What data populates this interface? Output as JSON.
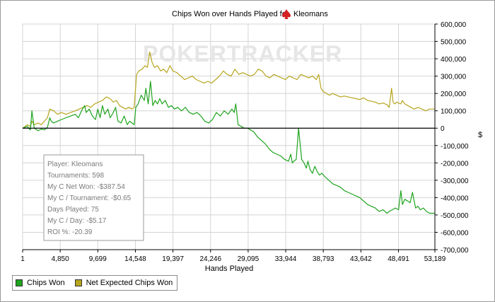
{
  "chart_data": {
    "type": "line",
    "title": "Chips Won over Hands Played for",
    "player_name": "Kleomans",
    "xlabel": "Hands Played",
    "ylabel": "$",
    "xlim": [
      1,
      53189
    ],
    "ylim": [
      -700000,
      600000
    ],
    "x_ticks": [
      1,
      4850,
      9699,
      14548,
      19397,
      24246,
      29095,
      33944,
      38793,
      43642,
      48491,
      53189
    ],
    "x_tick_labels": [
      "1",
      "4,850",
      "9,699",
      "14,548",
      "19,397",
      "24,246",
      "29,095",
      "33,944",
      "38,793",
      "43,642",
      "48,491",
      "53,189"
    ],
    "y_ticks": [
      600000,
      500000,
      400000,
      300000,
      200000,
      100000,
      0,
      -100000,
      -200000,
      -300000,
      -400000,
      -500000,
      -600000,
      -700000
    ],
    "y_tick_labels": [
      "600,000",
      "500,000",
      "400,000",
      "300,000",
      "200,000",
      "100,000",
      "0",
      "-100,000",
      "-200,000",
      "-300,000",
      "-400,000",
      "-500,000",
      "-600,000",
      "-700,000"
    ],
    "grid": true,
    "legend_position": "bottom-left",
    "watermark": "POKERTRACKER",
    "series": [
      {
        "name": "Chips Won",
        "color": "#1ea41e",
        "x": [
          1,
          600,
          1000,
          1200,
          1500,
          2000,
          2400,
          2800,
          3200,
          3500,
          3700,
          4000,
          4500,
          5000,
          5600,
          6200,
          6800,
          7200,
          7600,
          8000,
          8200,
          8600,
          9000,
          9400,
          9700,
          10000,
          10300,
          10600,
          11000,
          11300,
          11700,
          12000,
          12300,
          12700,
          13100,
          13500,
          13800,
          14100,
          14400,
          14600,
          14900,
          15300,
          15700,
          15900,
          16200,
          16500,
          16800,
          17100,
          17400,
          17700,
          18000,
          18400,
          18800,
          19200,
          19600,
          20000,
          20500,
          21000,
          21500,
          22000,
          22500,
          23000,
          23500,
          24000,
          24500,
          25000,
          25500,
          26000,
          26500,
          27000,
          27300,
          27500,
          27800,
          28200,
          28600,
          29000,
          29400,
          29800,
          30300,
          30800,
          31300,
          31800,
          32300,
          32800,
          33300,
          33800,
          34300,
          34600,
          34800,
          35000,
          35300,
          35600,
          36000,
          36300,
          36600,
          36800,
          37100,
          37400,
          37700,
          38000,
          38300,
          38600,
          39000,
          39500,
          40000,
          40500,
          41000,
          41500,
          42000,
          42500,
          43000,
          43500,
          44000,
          44500,
          45000,
          45500,
          46000,
          46500,
          47000,
          47300,
          47700,
          48100,
          48500,
          48800,
          49000,
          49300,
          49700,
          50000,
          50300,
          50700,
          51000,
          51300,
          51700,
          52100,
          52500,
          53189
        ],
        "values": [
          0,
          10000,
          -10000,
          100000,
          0,
          -15000,
          -5000,
          -10000,
          5000,
          60000,
          40000,
          30000,
          40000,
          50000,
          60000,
          70000,
          80000,
          60000,
          100000,
          130000,
          90000,
          110000,
          70000,
          50000,
          110000,
          60000,
          130000,
          80000,
          110000,
          60000,
          90000,
          120000,
          40000,
          30000,
          70000,
          20000,
          40000,
          30000,
          20000,
          120000,
          140000,
          190000,
          160000,
          230000,
          140000,
          270000,
          130000,
          160000,
          140000,
          170000,
          140000,
          160000,
          120000,
          130000,
          110000,
          120000,
          100000,
          120000,
          90000,
          80000,
          90000,
          70000,
          40000,
          30000,
          50000,
          90000,
          70000,
          100000,
          80000,
          110000,
          90000,
          140000,
          20000,
          10000,
          0,
          0,
          -10000,
          -20000,
          -50000,
          -70000,
          -90000,
          -120000,
          -140000,
          -150000,
          -160000,
          -180000,
          -190000,
          -150000,
          -200000,
          -190000,
          -180000,
          0,
          -180000,
          -200000,
          -230000,
          -190000,
          -240000,
          -260000,
          -220000,
          -250000,
          -270000,
          -260000,
          -280000,
          -300000,
          -320000,
          -330000,
          -340000,
          -360000,
          -370000,
          -380000,
          -390000,
          -400000,
          -420000,
          -440000,
          -450000,
          -460000,
          -480000,
          -470000,
          -490000,
          -480000,
          -470000,
          -460000,
          -470000,
          -360000,
          -440000,
          -410000,
          -420000,
          -430000,
          -370000,
          -460000,
          -450000,
          -470000,
          -460000,
          -480000,
          -490000,
          -490000
        ]
      },
      {
        "name": "Net Expected Chips Won",
        "color": "#b7a51e",
        "x": [
          1,
          600,
          1000,
          1200,
          1500,
          2000,
          2400,
          2800,
          3200,
          3500,
          4000,
          4500,
          5000,
          5600,
          6200,
          6800,
          7300,
          7800,
          8300,
          8800,
          9300,
          9800,
          10300,
          10800,
          11300,
          11700,
          12100,
          12500,
          12900,
          13300,
          13700,
          14100,
          14400,
          14700,
          15000,
          15400,
          15800,
          16100,
          16400,
          16700,
          17000,
          17400,
          17800,
          18200,
          18600,
          19000,
          19400,
          19900,
          20400,
          20900,
          21400,
          21900,
          22400,
          22900,
          23400,
          23900,
          24400,
          24900,
          25400,
          25900,
          26400,
          26900,
          27400,
          27900,
          28400,
          28900,
          29400,
          29900,
          30400,
          30900,
          31400,
          31900,
          32400,
          32900,
          33400,
          33900,
          34400,
          34900,
          35400,
          35900,
          36400,
          36900,
          37400,
          37900,
          38200,
          38500,
          38800,
          39200,
          39600,
          40000,
          40500,
          41000,
          41500,
          42000,
          42500,
          43000,
          43500,
          44000,
          44500,
          45000,
          45500,
          46000,
          46500,
          47000,
          47300,
          47600,
          47800,
          48000,
          48300,
          48500,
          48800,
          49000,
          49300,
          49700,
          50100,
          50500,
          51000,
          51500,
          52000,
          52500,
          53189
        ],
        "values": [
          0,
          20000,
          10000,
          40000,
          20000,
          30000,
          20000,
          40000,
          60000,
          110000,
          100000,
          80000,
          90000,
          80000,
          90000,
          100000,
          110000,
          120000,
          130000,
          120000,
          140000,
          150000,
          160000,
          180000,
          170000,
          150000,
          160000,
          130000,
          120000,
          110000,
          120000,
          110000,
          120000,
          310000,
          330000,
          340000,
          360000,
          350000,
          440000,
          380000,
          350000,
          360000,
          330000,
          340000,
          320000,
          360000,
          330000,
          320000,
          300000,
          280000,
          290000,
          300000,
          280000,
          270000,
          260000,
          270000,
          260000,
          280000,
          300000,
          330000,
          310000,
          300000,
          340000,
          310000,
          320000,
          310000,
          300000,
          310000,
          340000,
          330000,
          300000,
          290000,
          310000,
          300000,
          290000,
          280000,
          300000,
          290000,
          280000,
          310000,
          300000,
          290000,
          300000,
          280000,
          310000,
          230000,
          210000,
          200000,
          190000,
          200000,
          190000,
          180000,
          185000,
          180000,
          175000,
          170000,
          165000,
          175000,
          160000,
          155000,
          150000,
          140000,
          145000,
          135000,
          120000,
          230000,
          150000,
          140000,
          150000,
          145000,
          140000,
          160000,
          140000,
          130000,
          120000,
          110000,
          120000,
          110000,
          100000,
          110000,
          110000
        ]
      }
    ],
    "annotations": [
      "Player: Kleomans",
      "Tournaments: 598",
      "My C Net Won: -$387.54",
      "My C / Tournament: -$0.65",
      "Days Played: 75",
      "My C / Day: -$5.17",
      "ROI %: -20.39"
    ]
  },
  "colors": {
    "axis": "#000000",
    "grid": "#d4d4d4",
    "watermark": "#e3e3e3",
    "infobox_text": "#7a7a7a"
  },
  "icons": {
    "title_icon": "spade-icon"
  }
}
